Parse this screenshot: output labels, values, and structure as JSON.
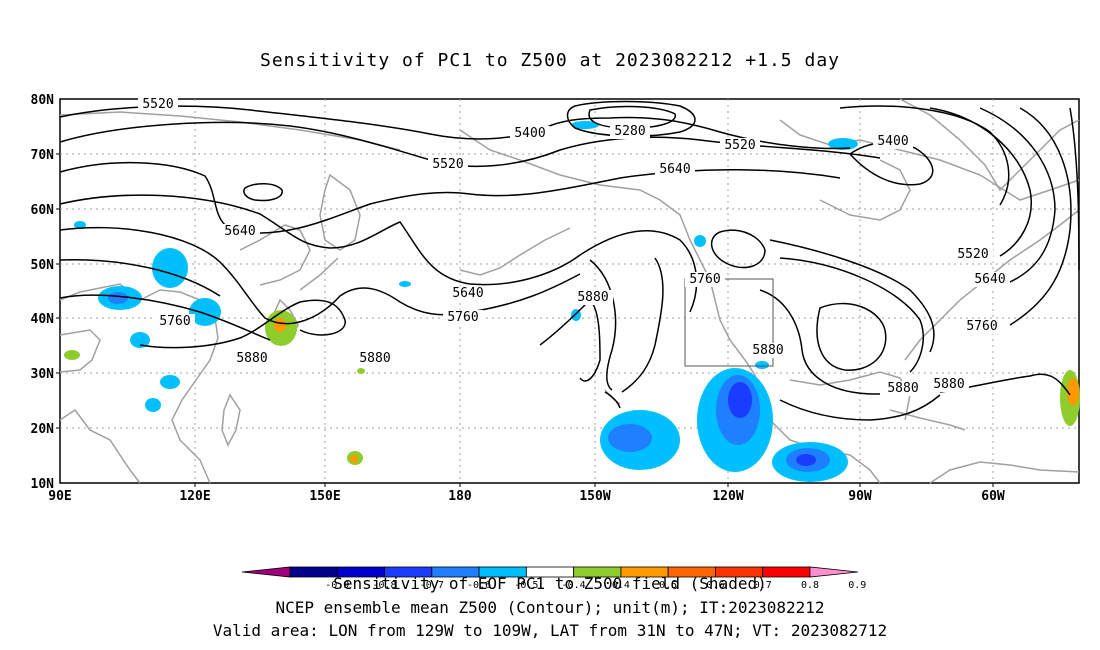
{
  "title": "Sensitivity of PC1 to Z500 at 2023082212 +1.5 day",
  "lat_labels": [
    "80N",
    "70N",
    "60N",
    "50N",
    "40N",
    "30N",
    "20N",
    "10N"
  ],
  "lon_labels": [
    "90E",
    "120E",
    "150E",
    "180",
    "150W",
    "120W",
    "90W",
    "60W"
  ],
  "contour_labels": [
    {
      "text": "5520"
    },
    {
      "text": "5400"
    },
    {
      "text": "5280"
    },
    {
      "text": "5520"
    },
    {
      "text": "5400"
    },
    {
      "text": "5520"
    },
    {
      "text": "5640"
    },
    {
      "text": "5640"
    },
    {
      "text": "5520"
    },
    {
      "text": "5640"
    },
    {
      "text": "5640"
    },
    {
      "text": "5760"
    },
    {
      "text": "5760"
    },
    {
      "text": "5880"
    },
    {
      "text": "5760"
    },
    {
      "text": "5880"
    },
    {
      "text": "5880"
    },
    {
      "text": "5880"
    },
    {
      "text": "5760"
    },
    {
      "text": "5880"
    },
    {
      "text": "5880"
    }
  ],
  "colorbar": {
    "colors": [
      "#a0007a",
      "#00008b",
      "#0000cd",
      "#1a3cff",
      "#1e7fff",
      "#00bfff",
      "#ffffff",
      "#8fcc2e",
      "#ff9900",
      "#ff6600",
      "#ff3300",
      "#ff0000",
      "#ff8fd0"
    ],
    "tick_labels": [
      "-0.9",
      "-0.8",
      "-0.7",
      "-0.6",
      "-0.5",
      "-0.4",
      "0.4",
      "0.5",
      "0.6",
      "0.7",
      "0.8",
      "0.9"
    ]
  },
  "footer": {
    "line1": "Sensitivity of EOF PC1 to Z500 field (Shaded)",
    "line2": "NCEP ensemble mean Z500 (Contour); unit(m); IT:2023082212",
    "line3": "Valid area: LON from 129W to 109W, LAT from 31N to 47N; VT: 2023082712"
  },
  "colors": {
    "coast": "#a0a0a0",
    "grid": "#a0a0a0",
    "contour": "#000000",
    "box": "#555555"
  }
}
